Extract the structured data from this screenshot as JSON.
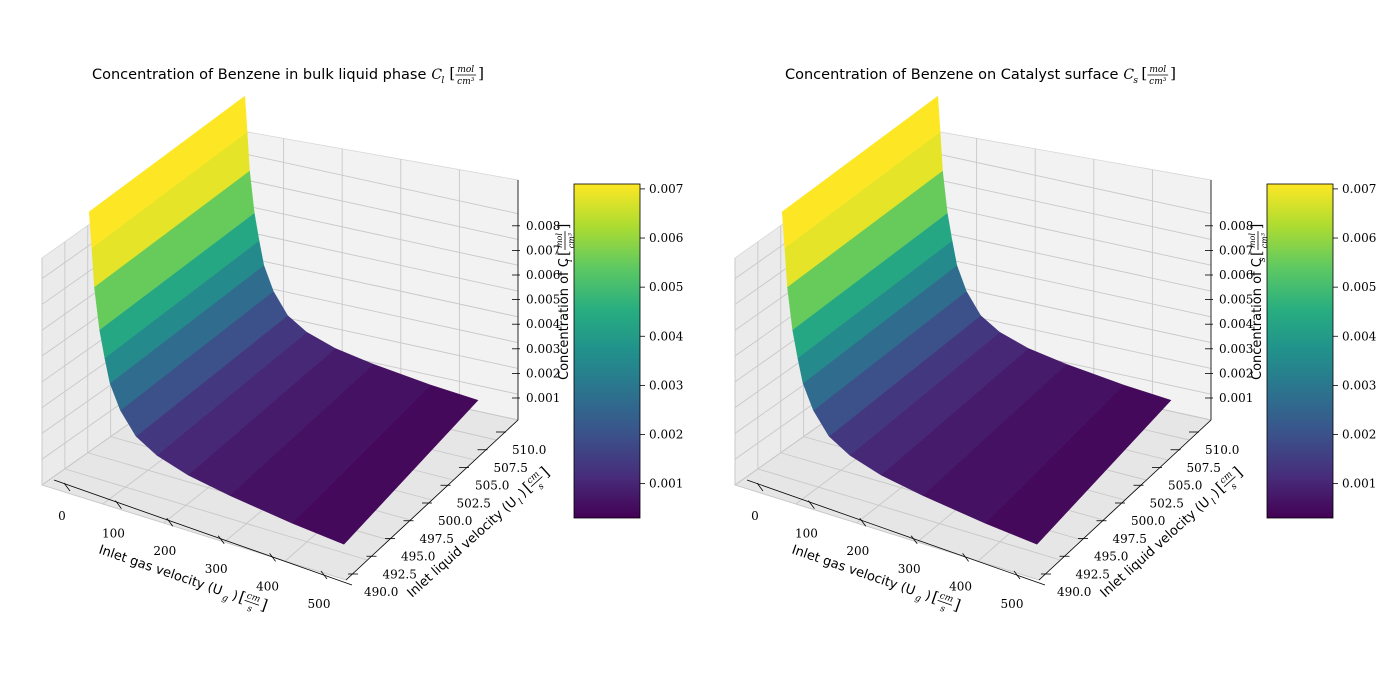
{
  "chart_data": [
    {
      "type": "surface3d",
      "title": "Concentration of Benzene in bulk liquid phase",
      "title_symbol": "C",
      "title_subscript": "l",
      "xlabel": "Inlet gas velocity (U",
      "xlabel_subscript": "g",
      "ylabel": "Inlet liquid velocity (U",
      "ylabel_subscript": "l",
      "zlabel": "Concentration of C",
      "zlabel_subscript": "l",
      "units_num": "mol",
      "units_den": "cm³",
      "vel_units_num": "cm",
      "vel_units_den": "s",
      "x_ticks": [
        "0",
        "100",
        "200",
        "300",
        "400",
        "500"
      ],
      "y_ticks": [
        "490.0",
        "492.5",
        "495.0",
        "497.5",
        "500.0",
        "502.5",
        "505.0",
        "507.5",
        "510.0"
      ],
      "z_ticks": [
        "0.001",
        "0.002",
        "0.003",
        "0.004",
        "0.005",
        "0.006",
        "0.007",
        "0.008"
      ],
      "colorbar_ticks": [
        "0.001",
        "0.002",
        "0.003",
        "0.004",
        "0.005",
        "0.006",
        "0.007"
      ],
      "xlim": [
        0,
        500
      ],
      "ylim": [
        490,
        510
      ],
      "zlim": [
        0,
        0.0088
      ],
      "cmap_range": [
        0.0003,
        0.0071
      ],
      "colormap": "viridis",
      "x": [
        10,
        15,
        20,
        30,
        40,
        50,
        70,
        100,
        140,
        200,
        280,
        400,
        500
      ],
      "z": [
        0.0087,
        0.0075,
        0.0062,
        0.0048,
        0.0039,
        0.0031,
        0.0023,
        0.0016,
        0.0012,
        0.0009,
        0.0007,
        0.0005,
        0.0004
      ]
    },
    {
      "type": "surface3d",
      "title": "Concentration of Benzene on Catalyst surface",
      "title_symbol": "C",
      "title_subscript": "s",
      "xlabel": "Inlet gas velocity (U",
      "xlabel_subscript": "g",
      "ylabel": "Inlet liquid velocity (U",
      "ylabel_subscript": "l",
      "zlabel": "Concentration of C",
      "zlabel_subscript": "s",
      "units_num": "mol",
      "units_den": "cm³",
      "vel_units_num": "cm",
      "vel_units_den": "s",
      "x_ticks": [
        "0",
        "100",
        "200",
        "300",
        "400",
        "500"
      ],
      "y_ticks": [
        "490.0",
        "492.5",
        "495.0",
        "497.5",
        "500.0",
        "502.5",
        "505.0",
        "507.5",
        "510.0"
      ],
      "z_ticks": [
        "0.001",
        "0.002",
        "0.003",
        "0.004",
        "0.005",
        "0.006",
        "0.007",
        "0.008"
      ],
      "colorbar_ticks": [
        "0.001",
        "0.002",
        "0.003",
        "0.004",
        "0.005",
        "0.006",
        "0.007"
      ],
      "xlim": [
        0,
        500
      ],
      "ylim": [
        490,
        510
      ],
      "zlim": [
        0,
        0.0088
      ],
      "cmap_range": [
        0.0003,
        0.0071
      ],
      "colormap": "viridis",
      "x": [
        10,
        15,
        20,
        30,
        40,
        50,
        70,
        100,
        140,
        200,
        280,
        400,
        500
      ],
      "z": [
        0.0087,
        0.0075,
        0.0062,
        0.0048,
        0.0039,
        0.0031,
        0.0023,
        0.0016,
        0.0012,
        0.0009,
        0.0007,
        0.0005,
        0.0004
      ]
    }
  ]
}
